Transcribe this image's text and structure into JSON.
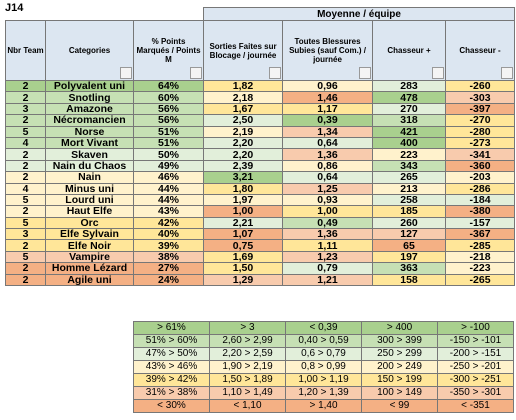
{
  "sheet_title": "J14",
  "group_header": "Moyenne / équipe",
  "columns": [
    "Nbr Team",
    "Categories",
    "% Points Marqués / Points M",
    "Sorties Faites sur Blocage / journée",
    "Toutes Blessures Subies (sauf Com.) / journée",
    "Chasseur +",
    "Chasseur -"
  ],
  "rows": [
    {
      "cells": [
        "2",
        "Polyvalent uni",
        "64%",
        "1,82",
        "0,96",
        "283",
        "-260"
      ],
      "colors": [
        "#a9d08e",
        "#ffe699",
        "#fff2cc",
        "#e2efda",
        "#ffe699"
      ]
    },
    {
      "cells": [
        "2",
        "Snotling",
        "60%",
        "2,18",
        "1,46",
        "478",
        "-303"
      ],
      "colors": [
        "#c6e0b4",
        "#fff2cc",
        "#f4b084",
        "#a9d08e",
        "#f8cbad"
      ]
    },
    {
      "cells": [
        "3",
        "Amazone",
        "56%",
        "1,67",
        "1,17",
        "270",
        "-397"
      ],
      "colors": [
        "#c6e0b4",
        "#ffe699",
        "#ffe699",
        "#e2efda",
        "#f4b084"
      ]
    },
    {
      "cells": [
        "2",
        "Nécromancien",
        "56%",
        "2,50",
        "0,39",
        "318",
        "-270"
      ],
      "colors": [
        "#c6e0b4",
        "#e2efda",
        "#a9d08e",
        "#c6e0b4",
        "#ffe699"
      ]
    },
    {
      "cells": [
        "5",
        "Norse",
        "51%",
        "2,19",
        "1,34",
        "421",
        "-280"
      ],
      "colors": [
        "#c6e0b4",
        "#fff2cc",
        "#f8cbad",
        "#a9d08e",
        "#ffe699"
      ]
    },
    {
      "cells": [
        "4",
        "Mort Vivant",
        "51%",
        "2,20",
        "0,64",
        "400",
        "-273"
      ],
      "colors": [
        "#c6e0b4",
        "#e2efda",
        "#e2efda",
        "#a9d08e",
        "#ffe699"
      ]
    },
    {
      "cells": [
        "2",
        "Skaven",
        "50%",
        "2,20",
        "1,36",
        "223",
        "-341"
      ],
      "colors": [
        "#e2efda",
        "#e2efda",
        "#f8cbad",
        "#fff2cc",
        "#f8cbad"
      ]
    },
    {
      "cells": [
        "2",
        "Nain du Chaos",
        "49%",
        "2,39",
        "0,86",
        "343",
        "-360"
      ],
      "colors": [
        "#e2efda",
        "#e2efda",
        "#fff2cc",
        "#c6e0b4",
        "#f4b084"
      ]
    },
    {
      "cells": [
        "2",
        "Nain",
        "46%",
        "3,21",
        "0,64",
        "265",
        "-203"
      ],
      "colors": [
        "#fff2cc",
        "#a9d08e",
        "#e2efda",
        "#e2efda",
        "#fff2cc"
      ]
    },
    {
      "cells": [
        "4",
        "Minus uni",
        "44%",
        "1,80",
        "1,25",
        "213",
        "-286"
      ],
      "colors": [
        "#fff2cc",
        "#ffe699",
        "#f8cbad",
        "#fff2cc",
        "#ffe699"
      ]
    },
    {
      "cells": [
        "5",
        "Lourd uni",
        "44%",
        "1,97",
        "0,93",
        "258",
        "-184"
      ],
      "colors": [
        "#fff2cc",
        "#fff2cc",
        "#fff2cc",
        "#e2efda",
        "#e2efda"
      ]
    },
    {
      "cells": [
        "2",
        "Haut Elfe",
        "43%",
        "1,00",
        "1,00",
        "185",
        "-380"
      ],
      "colors": [
        "#fff2cc",
        "#f4b084",
        "#ffe699",
        "#ffe699",
        "#f4b084"
      ]
    },
    {
      "cells": [
        "5",
        "Orc",
        "42%",
        "2,21",
        "0,49",
        "260",
        "-157"
      ],
      "colors": [
        "#ffe699",
        "#e2efda",
        "#c6e0b4",
        "#e2efda",
        "#e2efda"
      ]
    },
    {
      "cells": [
        "3",
        "Elfe Sylvain",
        "40%",
        "1,07",
        "1,36",
        "127",
        "-367"
      ],
      "colors": [
        "#ffe699",
        "#f4b084",
        "#f8cbad",
        "#f8cbad",
        "#f4b084"
      ]
    },
    {
      "cells": [
        "2",
        "Elfe Noir",
        "39%",
        "0,75",
        "1,11",
        "65",
        "-285"
      ],
      "colors": [
        "#ffe699",
        "#f4b084",
        "#ffe699",
        "#f4b084",
        "#ffe699"
      ]
    },
    {
      "cells": [
        "5",
        "Vampire",
        "38%",
        "1,69",
        "1,23",
        "197",
        "-218"
      ],
      "colors": [
        "#f8cbad",
        "#ffe699",
        "#f8cbad",
        "#ffe699",
        "#fff2cc"
      ]
    },
    {
      "cells": [
        "2",
        "Homme Lézard",
        "27%",
        "1,50",
        "0,79",
        "363",
        "-223"
      ],
      "colors": [
        "#f4b084",
        "#ffe699",
        "#e2efda",
        "#c6e0b4",
        "#fff2cc"
      ]
    },
    {
      "cells": [
        "2",
        "Agile uni",
        "24%",
        "1,29",
        "1,21",
        "158",
        "-265"
      ],
      "colors": [
        "#f4b084",
        "#f8cbad",
        "#f8cbad",
        "#ffe699",
        "#ffe699"
      ]
    }
  ],
  "legend": {
    "colors": [
      "#a9d08e",
      "#c6e0b4",
      "#e2efda",
      "#fff2cc",
      "#ffe699",
      "#f8cbad",
      "#f4b084"
    ],
    "rows": [
      [
        "> 61%",
        "> 3",
        "< 0,39",
        "> 400",
        "> -100"
      ],
      [
        "51% > 60%",
        "2,60 > 2,99",
        "0,40 > 0,59",
        "300 > 399",
        "-150 > -101"
      ],
      [
        "47% > 50%",
        "2,20 > 2,59",
        "0,6 > 0,79",
        "250 > 299",
        "-200 > -151"
      ],
      [
        "43% > 46%",
        "1,90 > 2,19",
        "0,8 > 0,99",
        "200 > 249",
        "-250 > -201"
      ],
      [
        "39% > 42%",
        "1,50 > 1,89",
        "1,00 > 1,19",
        "150 > 199",
        "-300 > -251"
      ],
      [
        "31% > 38%",
        "1,10 > 1,49",
        "1,20 > 1,39",
        "100 > 149",
        "-350 > -301"
      ],
      [
        "< 30%",
        "< 1,10",
        "> 1,40",
        "< 99",
        "< -351"
      ]
    ]
  }
}
